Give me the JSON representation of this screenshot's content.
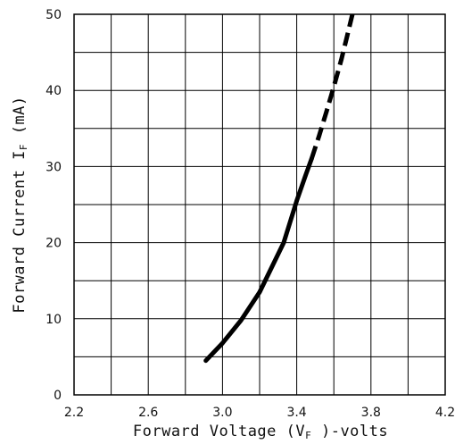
{
  "chart_data": {
    "type": "line",
    "xlabel": {
      "prefix": "Forward Voltage (V",
      "sub": "F",
      "suffix": " )-volts"
    },
    "ylabel": {
      "prefix": "Forward Current I",
      "sub": "F",
      "suffix": " (mA)"
    },
    "xlim": [
      2.2,
      4.2
    ],
    "ylim": [
      0,
      50
    ],
    "x_ticks": [
      2.2,
      2.6,
      3.0,
      3.4,
      3.8,
      4.2
    ],
    "x_tick_labels": [
      "2.2",
      "2.6",
      "3.0",
      "3.4",
      "3.8",
      "4.2"
    ],
    "y_ticks": [
      0,
      10,
      20,
      30,
      40,
      50
    ],
    "y_tick_labels": [
      "0",
      "10",
      "20",
      "30",
      "40",
      "50"
    ],
    "x_grid_step": 0.2,
    "y_grid_step": 5,
    "grid": true,
    "series": [
      {
        "style": "solid",
        "x": [
          2.91,
          3.0,
          3.1,
          3.2,
          3.26,
          3.33,
          3.4,
          3.45,
          3.48
        ],
        "y": [
          4.5,
          6.8,
          9.8,
          13.5,
          16.5,
          20.0,
          25.5,
          29.0,
          31.0
        ]
      },
      {
        "style": "dashed",
        "x": [
          3.48,
          3.52,
          3.56,
          3.6,
          3.64,
          3.67,
          3.7
        ],
        "y": [
          31.0,
          34.0,
          37.2,
          40.5,
          44.0,
          47.0,
          50.0
        ]
      }
    ],
    "colors": {
      "line": "#000000",
      "grid": "#000000"
    }
  }
}
